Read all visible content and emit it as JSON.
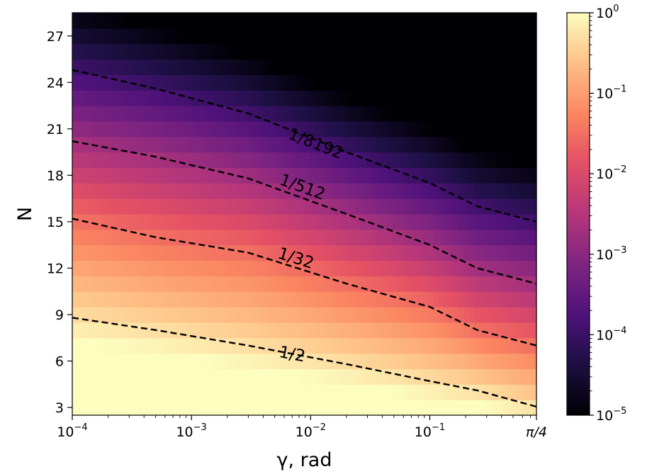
{
  "chart_data": {
    "type": "heatmap",
    "title": "",
    "xlabel": "γ, rad",
    "ylabel": "N",
    "x_scale": "log",
    "xlim": [
      0.0001,
      0.7854
    ],
    "ylim": [
      2.5,
      28.5
    ],
    "x_ticks": [
      {
        "value": 0.0001,
        "base": "10",
        "exp": "−4"
      },
      {
        "value": 0.001,
        "base": "10",
        "exp": "−3"
      },
      {
        "value": 0.01,
        "base": "10",
        "exp": "−2"
      },
      {
        "value": 0.1,
        "base": "10",
        "exp": "−1"
      },
      {
        "value": 0.7854,
        "base": "π/4",
        "exp": ""
      }
    ],
    "y_ticks": [
      3,
      6,
      9,
      12,
      15,
      18,
      21,
      24,
      27
    ],
    "colorbar": {
      "scale": "log",
      "range": [
        1e-05,
        1
      ],
      "colormap": "magma",
      "ticks": [
        {
          "value": 1,
          "base": "10",
          "exp": "0"
        },
        {
          "value": 0.1,
          "base": "10",
          "exp": "−1"
        },
        {
          "value": 0.01,
          "base": "10",
          "exp": "−2"
        },
        {
          "value": 0.001,
          "base": "10",
          "exp": "−3"
        },
        {
          "value": 0.0001,
          "base": "10",
          "exp": "−4"
        },
        {
          "value": 1e-05,
          "base": "10",
          "exp": "−5"
        }
      ]
    },
    "grid": false,
    "contours": [
      {
        "label": "1/2",
        "level": 0.5,
        "points": [
          [
            0.0001,
            8.8
          ],
          [
            0.0005,
            8.0
          ],
          [
            0.003,
            7.0
          ],
          [
            0.02,
            5.8
          ],
          [
            0.1,
            4.7
          ],
          [
            0.25,
            4.1
          ],
          [
            0.7854,
            3.05
          ]
        ]
      },
      {
        "label": "1/32",
        "level": 0.03125,
        "points": [
          [
            0.0001,
            15.2
          ],
          [
            0.0005,
            14.0
          ],
          [
            0.003,
            13.0
          ],
          [
            0.02,
            11.0
          ],
          [
            0.1,
            9.5
          ],
          [
            0.25,
            8.0
          ],
          [
            0.7854,
            7.0
          ]
        ]
      },
      {
        "label": "1/512",
        "level": 0.001953125,
        "points": [
          [
            0.0001,
            20.2
          ],
          [
            0.0005,
            19.2
          ],
          [
            0.003,
            17.8
          ],
          [
            0.02,
            15.5
          ],
          [
            0.1,
            13.5
          ],
          [
            0.25,
            12.0
          ],
          [
            0.7854,
            11.0
          ]
        ]
      },
      {
        "label": "1/8192",
        "level": 0.0001220703125,
        "points": [
          [
            0.0001,
            24.8
          ],
          [
            0.0005,
            23.6
          ],
          [
            0.003,
            22.0
          ],
          [
            0.02,
            19.5
          ],
          [
            0.1,
            17.5
          ],
          [
            0.25,
            16.0
          ],
          [
            0.7854,
            15.0
          ]
        ]
      }
    ],
    "contour_label_positions": [
      {
        "label": "1/2",
        "x": 0.007,
        "y": 6.4
      },
      {
        "label": "1/32",
        "x": 0.0075,
        "y": 12.6
      },
      {
        "label": "1/512",
        "x": 0.0085,
        "y": 17.2
      },
      {
        "label": "1/8192",
        "x": 0.011,
        "y": 20.0
      }
    ]
  }
}
